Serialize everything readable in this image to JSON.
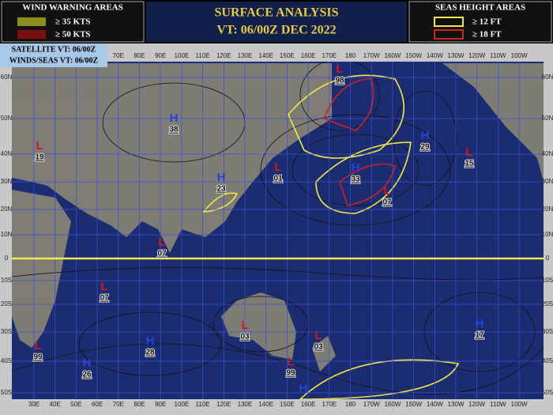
{
  "header": {
    "title": "SURFACE ANALYSIS",
    "valid_time": "VT: 06/00Z DEC 2022"
  },
  "wind_legend": {
    "title": "WIND WARNING AREAS",
    "items": [
      "≥ 35 KTS",
      "≥ 50 KTS"
    ]
  },
  "seas_legend": {
    "title": "SEAS HEIGHT AREAS",
    "items": [
      "≥ 12 FT",
      "≥ 18 FT"
    ]
  },
  "times": {
    "satellite": "SATELLITE VT: 06/00Z",
    "winds_seas": "WINDS/SEAS VT: 06/00Z"
  },
  "map": {
    "top_longitudes": [
      "70E",
      "80E",
      "90E",
      "100E",
      "110E",
      "120E",
      "130E",
      "140E",
      "150E",
      "160E",
      "170E",
      "180",
      "170W",
      "160W",
      "150W",
      "140W",
      "130W",
      "120W",
      "110W",
      "100W"
    ],
    "bottom_longitudes": [
      "30E",
      "40E",
      "50E",
      "60E",
      "70E",
      "80E",
      "90E",
      "100E",
      "110E",
      "120E",
      "130E",
      "140E",
      "150E",
      "160E",
      "170E",
      "180",
      "170W",
      "160W",
      "150W",
      "140W",
      "130W",
      "120W",
      "110W",
      "100W"
    ],
    "latitudes": [
      "60N",
      "50N",
      "40N",
      "30N",
      "20N",
      "10N",
      "0",
      "10S",
      "20S",
      "30S",
      "40S",
      "50S"
    ],
    "centers": [
      {
        "type": "L",
        "value": "19"
      },
      {
        "type": "H",
        "value": "38"
      },
      {
        "type": "L",
        "value": "98"
      },
      {
        "type": "H",
        "value": "23"
      },
      {
        "type": "L",
        "value": "01"
      },
      {
        "type": "H",
        "value": "33"
      },
      {
        "type": "L",
        "value": "07"
      },
      {
        "type": "H",
        "value": "29"
      },
      {
        "type": "L",
        "value": "15"
      },
      {
        "type": "L",
        "value": "07"
      },
      {
        "type": "L",
        "value": "07"
      },
      {
        "type": "L",
        "value": "03"
      },
      {
        "type": "L",
        "value": "99"
      },
      {
        "type": "H",
        "value": "28"
      },
      {
        "type": "H",
        "value": "26"
      },
      {
        "type": "L",
        "value": "99"
      },
      {
        "type": "L",
        "value": "03"
      },
      {
        "type": "H",
        "value": "17"
      },
      {
        "type": "H"
      }
    ]
  }
}
